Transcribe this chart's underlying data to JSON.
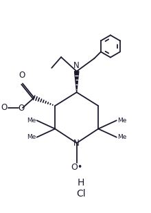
{
  "bg_color": "#ffffff",
  "line_color": "#1a1a2e",
  "lw": 1.3,
  "fig_w": 2.2,
  "fig_h": 3.1,
  "dpi": 100,
  "xlim": [
    0,
    11
  ],
  "ylim": [
    0,
    15
  ]
}
